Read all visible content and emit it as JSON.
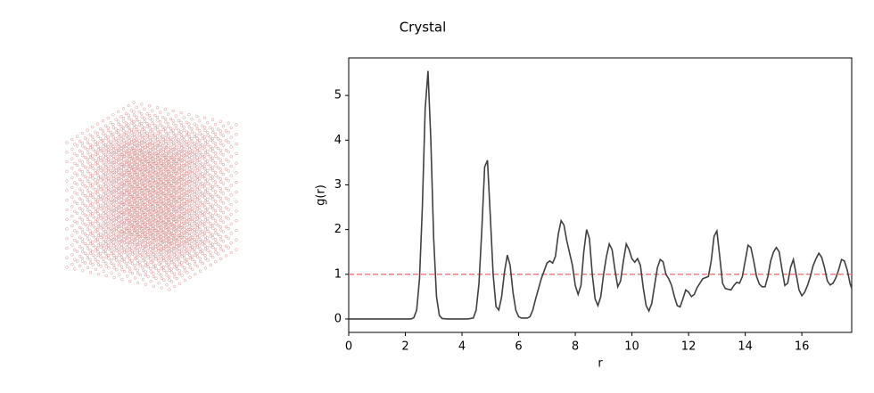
{
  "chart_data": {
    "type": "line",
    "title": "Crystal",
    "x_label": "r",
    "y_label": "g(r)",
    "x": [
      0,
      2.2,
      2.3,
      2.4,
      2.5,
      2.6,
      2.7,
      2.8,
      2.9,
      3.0,
      3.1,
      3.2,
      3.3,
      3.5,
      4.2,
      4.4,
      4.5,
      4.6,
      4.7,
      4.8,
      4.9,
      5.0,
      5.1,
      5.2,
      5.3,
      5.4,
      5.5,
      5.6,
      5.7,
      5.8,
      5.9,
      6.0,
      6.1,
      6.3,
      6.4,
      6.5,
      6.6,
      6.8,
      7.0,
      7.1,
      7.2,
      7.3,
      7.4,
      7.5,
      7.6,
      7.7,
      7.9,
      8.0,
      8.1,
      8.2,
      8.3,
      8.4,
      8.5,
      8.6,
      8.7,
      8.8,
      8.9,
      9.0,
      9.1,
      9.2,
      9.3,
      9.4,
      9.5,
      9.6,
      9.7,
      9.8,
      9.9,
      10.0,
      10.1,
      10.2,
      10.3,
      10.4,
      10.5,
      10.6,
      10.7,
      10.8,
      10.9,
      11.0,
      11.1,
      11.2,
      11.3,
      11.4,
      11.5,
      11.6,
      11.7,
      11.8,
      11.9,
      12.0,
      12.1,
      12.2,
      12.3,
      12.5,
      12.7,
      12.8,
      12.9,
      13.0,
      13.1,
      13.2,
      13.3,
      13.5,
      13.6,
      13.7,
      13.8,
      13.9,
      14.0,
      14.1,
      14.2,
      14.3,
      14.4,
      14.5,
      14.6,
      14.7,
      14.8,
      14.9,
      15.0,
      15.1,
      15.2,
      15.3,
      15.4,
      15.5,
      15.6,
      15.7,
      15.8,
      15.9,
      16.0,
      16.1,
      16.2,
      16.3,
      16.4,
      16.5,
      16.6,
      16.7,
      16.8,
      16.9,
      17.0,
      17.1,
      17.2,
      17.3,
      17.4,
      17.5,
      17.6,
      17.7,
      17.76
    ],
    "values": [
      0,
      0,
      0.03,
      0.2,
      0.9,
      2.5,
      4.7,
      5.55,
      4.0,
      1.8,
      0.5,
      0.08,
      0.01,
      0,
      0,
      0.02,
      0.2,
      0.8,
      2.0,
      3.4,
      3.55,
      2.3,
      1.0,
      0.28,
      0.2,
      0.5,
      1.05,
      1.43,
      1.2,
      0.6,
      0.2,
      0.05,
      0.02,
      0.02,
      0.05,
      0.2,
      0.45,
      0.9,
      1.25,
      1.3,
      1.25,
      1.4,
      1.9,
      2.2,
      2.1,
      1.75,
      1.2,
      0.75,
      0.55,
      0.75,
      1.5,
      2.0,
      1.8,
      1.0,
      0.45,
      0.3,
      0.5,
      1.0,
      1.4,
      1.68,
      1.55,
      1.1,
      0.72,
      0.85,
      1.3,
      1.68,
      1.55,
      1.35,
      1.27,
      1.35,
      1.2,
      0.7,
      0.3,
      0.18,
      0.35,
      0.75,
      1.15,
      1.33,
      1.28,
      1.0,
      0.9,
      0.75,
      0.5,
      0.3,
      0.27,
      0.45,
      0.65,
      0.6,
      0.5,
      0.55,
      0.7,
      0.9,
      0.95,
      1.3,
      1.85,
      1.97,
      1.4,
      0.8,
      0.68,
      0.65,
      0.75,
      0.82,
      0.8,
      0.95,
      1.3,
      1.65,
      1.6,
      1.3,
      0.95,
      0.78,
      0.72,
      0.72,
      0.95,
      1.3,
      1.5,
      1.6,
      1.5,
      1.1,
      0.75,
      0.8,
      1.15,
      1.33,
      1.0,
      0.65,
      0.52,
      0.6,
      0.75,
      0.95,
      1.2,
      1.35,
      1.47,
      1.38,
      1.15,
      0.85,
      0.76,
      0.8,
      0.92,
      1.1,
      1.33,
      1.3,
      1.1,
      0.8,
      0.68
    ],
    "color": "#404040",
    "reference_line": 1,
    "reference_color": "#f08080",
    "xlim": [
      0,
      17.76
    ],
    "ylim": [
      -0.3,
      5.84
    ],
    "xticks": [
      0,
      2,
      4,
      6,
      8,
      10,
      12,
      14,
      16
    ],
    "yticks": [
      0,
      1,
      2,
      3,
      4,
      5
    ]
  }
}
